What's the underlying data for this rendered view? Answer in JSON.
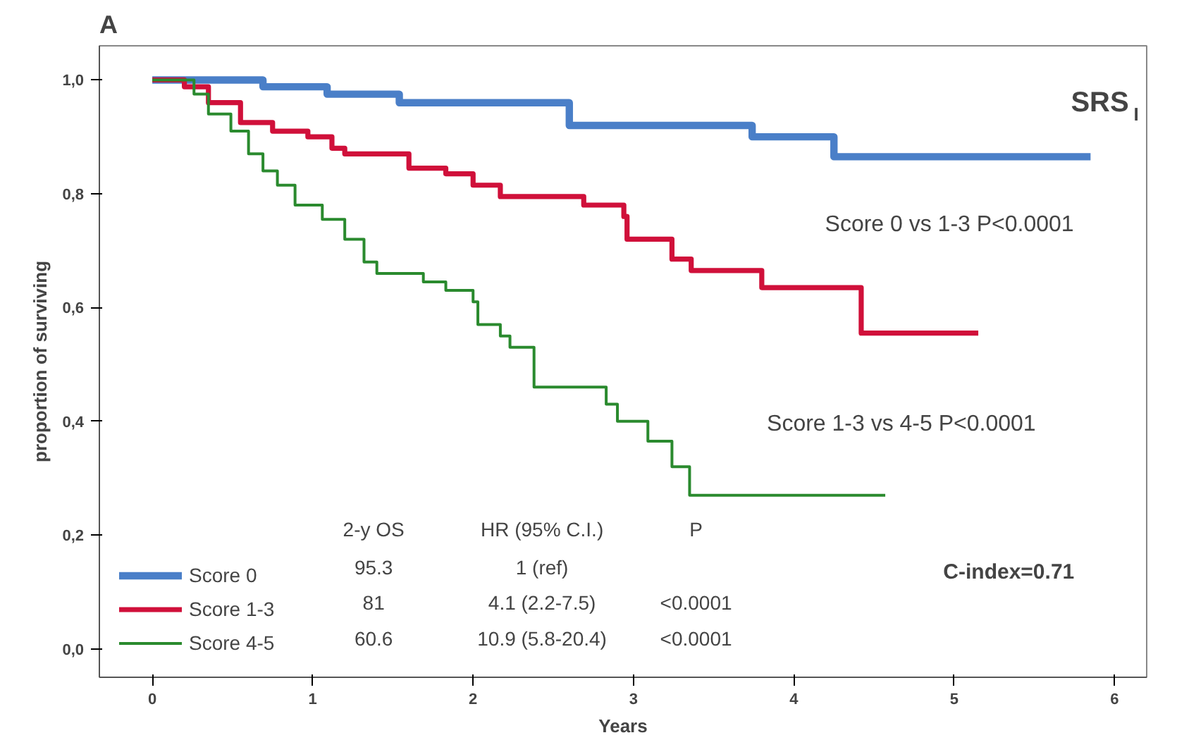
{
  "chart_data": {
    "type": "step",
    "title": "A",
    "xlabel": "Years",
    "ylabel": "proportion of surviving",
    "series": [
      {
        "name": "Score 0",
        "color": "#4a7fc8",
        "x": [
          0,
          0.69,
          1.09,
          1.54,
          2.6,
          3.74,
          4.25,
          5.85
        ],
        "values": [
          1.0,
          0.988,
          0.975,
          0.96,
          0.92,
          0.9,
          0.865,
          0.865
        ]
      },
      {
        "name": "Score 1-3",
        "color": "#d0103a",
        "x": [
          0,
          0.2,
          0.35,
          0.55,
          0.75,
          0.97,
          1.12,
          1.2,
          1.6,
          1.83,
          2.0,
          2.17,
          2.69,
          2.94,
          2.96,
          3.24,
          3.36,
          3.8,
          4.42,
          5.15
        ],
        "values": [
          1.0,
          0.988,
          0.96,
          0.925,
          0.91,
          0.9,
          0.88,
          0.87,
          0.845,
          0.835,
          0.815,
          0.795,
          0.78,
          0.76,
          0.72,
          0.685,
          0.665,
          0.635,
          0.555,
          0.555
        ]
      },
      {
        "name": "Score 4-5",
        "color": "#2a8a2e",
        "x": [
          0,
          0.26,
          0.35,
          0.49,
          0.6,
          0.69,
          0.78,
          0.89,
          1.06,
          1.2,
          1.32,
          1.4,
          1.69,
          1.83,
          2.0,
          2.03,
          2.17,
          2.23,
          2.38,
          2.83,
          2.9,
          3.09,
          3.24,
          3.35,
          4.57
        ],
        "values": [
          1.0,
          0.975,
          0.94,
          0.91,
          0.87,
          0.84,
          0.815,
          0.78,
          0.755,
          0.72,
          0.68,
          0.66,
          0.645,
          0.63,
          0.61,
          0.57,
          0.55,
          0.53,
          0.46,
          0.43,
          0.4,
          0.365,
          0.32,
          0.27,
          0.27
        ]
      }
    ],
    "xlim": [
      -0.33,
      6.2
    ],
    "ylim": [
      -0.05,
      1.06
    ],
    "xticks": [
      0,
      1,
      2,
      3,
      4,
      5,
      6
    ],
    "yticks": [
      {
        "value": 0,
        "label": "0,0"
      },
      {
        "value": 0.2,
        "label": "0,2"
      },
      {
        "value": 0.4,
        "label": "0,4"
      },
      {
        "value": 0.6,
        "label": "0,6"
      },
      {
        "value": 0.8,
        "label": "0,8"
      },
      {
        "value": 1.0,
        "label": "1,0"
      }
    ],
    "grid": false,
    "legend": "bottom left",
    "line_style": "solid",
    "annotations": [
      "SRS$_{I}$",
      "Score 0 vs 1-3 P<0.0001",
      "Score 1-3 vs 4-5 P<0.0001",
      "C-index=0.71",
      "2-y OS",
      "HR (95% C.I.)",
      "P",
      "95.3",
      "1 (ref)",
      "81",
      "4.1 (2.2-7.5)",
      "<0.0001",
      "60.6",
      "10.9 (5.8-20.4)",
      "<0.0001"
    ]
  }
}
